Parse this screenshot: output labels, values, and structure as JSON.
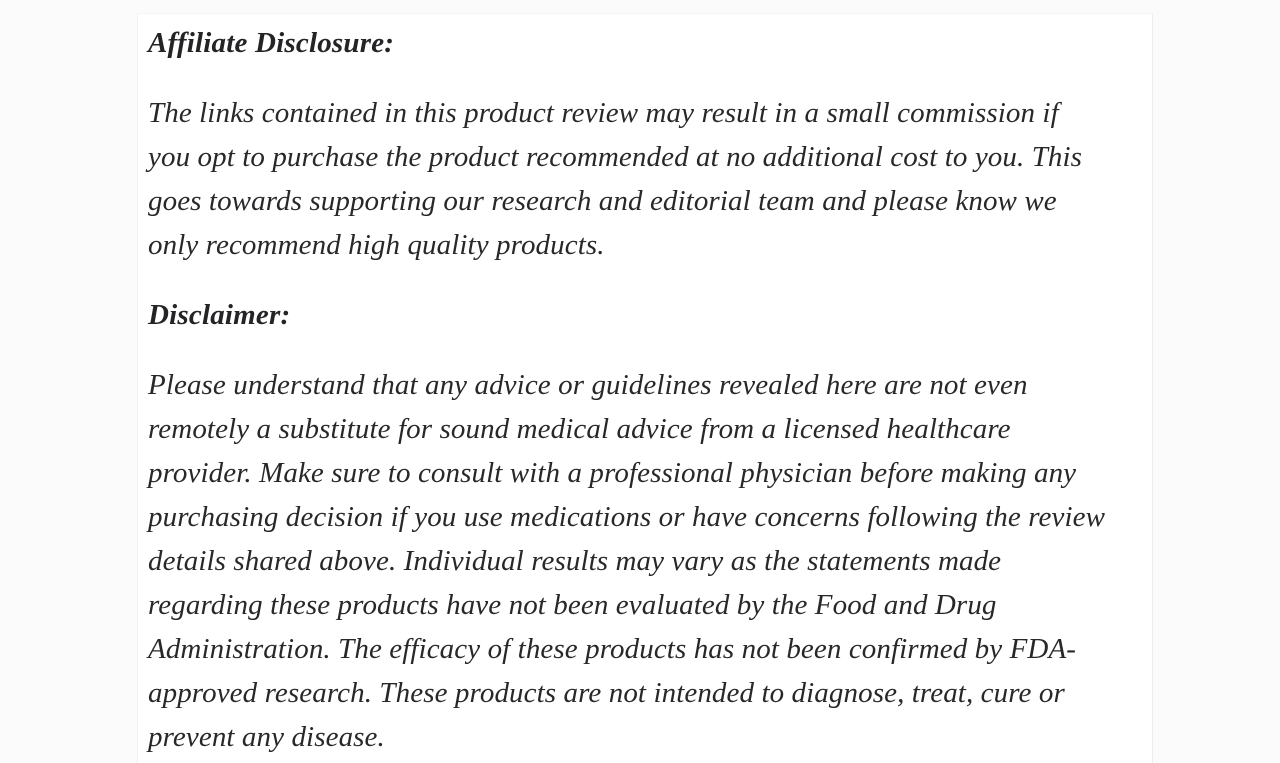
{
  "page": {
    "background_color": "#fbfbfb",
    "card_background_color": "#ffffff",
    "text_color": "#28282b"
  },
  "content": {
    "sections": [
      {
        "heading": "Affiliate Disclosure:",
        "body": "The links contained in this product review may result in a small commission if\nyou opt to purchase the product recommended at no additional cost to you. This\ngoes towards supporting our research and editorial team and please know we\nonly recommend high quality products."
      },
      {
        "heading": "Disclaimer:",
        "body": "Please understand that any advice or guidelines revealed here are not even\nremotely a substitute for sound medical advice from a licensed healthcare\nprovider. Make sure to consult with a professional physician before making any\npurchasing decision if you use medications or have concerns following the review\ndetails shared above. Individual results may vary as the statements made\nregarding these products have not been evaluated by the Food and Drug\nAdministration. The efficacy of these products has not been confirmed by FDA-\napproved research. These products are not intended to diagnose, treat, cure or\nprevent any disease."
      }
    ]
  }
}
